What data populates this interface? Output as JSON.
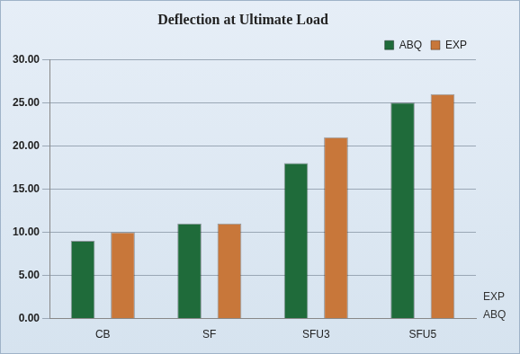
{
  "chart_data": {
    "type": "bar",
    "title": "Deflection at Ultimate Load",
    "categories": [
      "CB",
      "SF",
      "SFU3",
      "SFU5"
    ],
    "series": [
      {
        "name": "ABQ",
        "color": "#1f6b3a",
        "values": [
          9,
          11,
          18,
          25
        ]
      },
      {
        "name": "EXP",
        "color": "#c8773a",
        "values": [
          10,
          11,
          21,
          26
        ]
      }
    ],
    "ylim": [
      0,
      30
    ],
    "yticks": [
      {
        "value": 0,
        "label": "0.00"
      },
      {
        "value": 5,
        "label": "5.00"
      },
      {
        "value": 10,
        "label": "10.00"
      },
      {
        "value": 15,
        "label": "15.00"
      },
      {
        "value": 20,
        "label": "20.00"
      },
      {
        "value": 25,
        "label": "25.00"
      },
      {
        "value": 30,
        "label": "30.00"
      }
    ],
    "grid": true,
    "legend": "top-right"
  }
}
